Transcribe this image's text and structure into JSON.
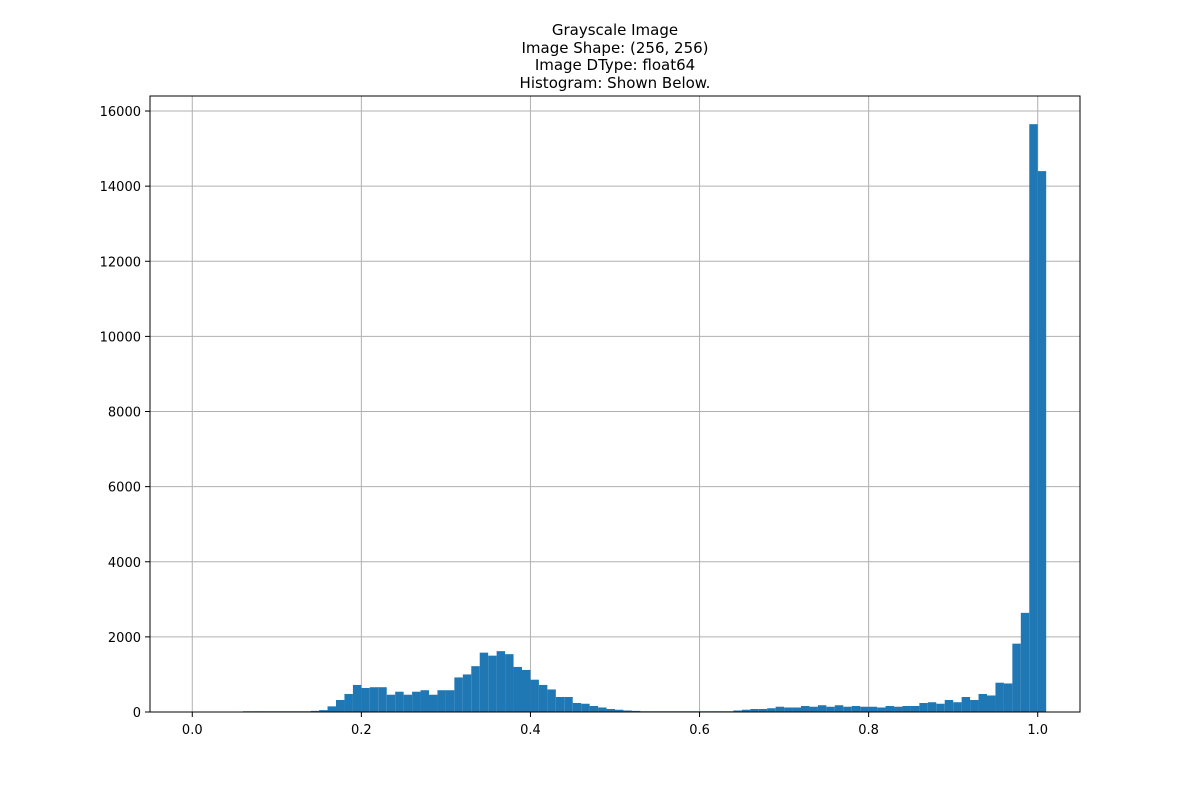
{
  "chart_data": {
    "type": "bar",
    "title_lines": [
      "Grayscale Image",
      "Image Shape: (256, 256)",
      "Image DType: float64",
      "Histogram: Shown Below."
    ],
    "xlabel": "",
    "ylabel": "",
    "xlim": [
      -0.05,
      1.05
    ],
    "ylim": [
      0,
      16400
    ],
    "x_ticks": [
      0.0,
      0.2,
      0.4,
      0.6,
      0.8,
      1.0
    ],
    "x_tick_labels": [
      "0.0",
      "0.2",
      "0.4",
      "0.6",
      "0.8",
      "1.0"
    ],
    "y_ticks": [
      0,
      2000,
      4000,
      6000,
      8000,
      10000,
      12000,
      14000,
      16000
    ],
    "y_tick_labels": [
      "0",
      "2000",
      "4000",
      "6000",
      "8000",
      "10000",
      "12000",
      "14000",
      "16000"
    ],
    "grid": true,
    "legend": "none",
    "bar_color": "#1f77b4",
    "grid_color": "#b0b0b0",
    "bin_start": 0.0,
    "bin_width": 0.01,
    "values": [
      0,
      0,
      0,
      0,
      0,
      10,
      20,
      20,
      20,
      20,
      20,
      20,
      20,
      20,
      30,
      50,
      150,
      320,
      480,
      720,
      640,
      660,
      660,
      460,
      540,
      460,
      540,
      580,
      460,
      580,
      580,
      920,
      1000,
      1220,
      1580,
      1500,
      1620,
      1540,
      1200,
      1120,
      860,
      720,
      600,
      400,
      400,
      240,
      220,
      160,
      120,
      80,
      60,
      40,
      30,
      20,
      20,
      20,
      20,
      20,
      20,
      20,
      20,
      20,
      20,
      20,
      40,
      60,
      80,
      80,
      100,
      140,
      120,
      120,
      160,
      140,
      180,
      140,
      180,
      140,
      160,
      140,
      140,
      120,
      160,
      140,
      160,
      160,
      240,
      260,
      220,
      320,
      260,
      400,
      320,
      480,
      440,
      780,
      760,
      1820,
      2640,
      15650,
      14400
    ]
  }
}
